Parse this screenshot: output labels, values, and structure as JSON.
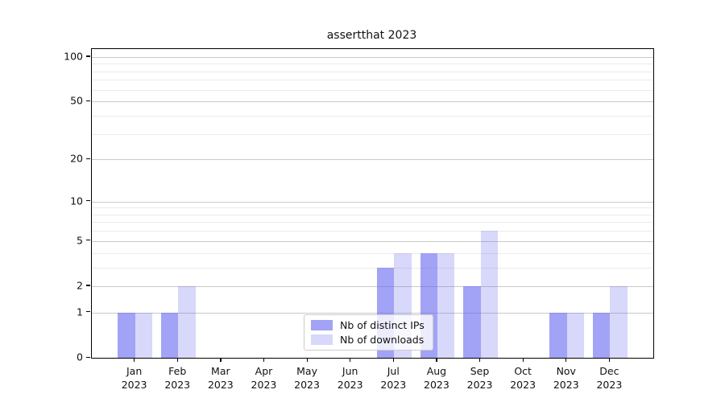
{
  "title": "assertthat 2023",
  "chart_data": {
    "type": "bar",
    "title": "assertthat 2023",
    "xlabel": "",
    "ylabel": "",
    "y_scale": "log1p",
    "ylim": [
      0,
      113
    ],
    "grid": true,
    "legend_position": "lower center",
    "year": "2023",
    "categories": [
      "Jan",
      "Feb",
      "Mar",
      "Apr",
      "May",
      "Jun",
      "Jul",
      "Aug",
      "Sep",
      "Oct",
      "Nov",
      "Dec"
    ],
    "series": [
      {
        "name": "Nb of distinct IPs",
        "color": "rgba(100,100,240,0.6)",
        "values": [
          1,
          1,
          0,
          0,
          0,
          0,
          3,
          4,
          2,
          0,
          1,
          1
        ]
      },
      {
        "name": "Nb of downloads",
        "color": "rgba(100,100,240,0.25)",
        "values": [
          1,
          2,
          0,
          0,
          0,
          0,
          4,
          4,
          6,
          0,
          1,
          2
        ]
      }
    ],
    "yticks": [
      0,
      1,
      2,
      5,
      10,
      20,
      50,
      100
    ],
    "minor_gridlines": [
      3,
      4,
      6,
      7,
      8,
      9,
      30,
      40,
      60,
      70,
      80,
      90
    ],
    "colors": {
      "major_grid": "#c9c9c9",
      "minor_grid": "#ebebeb",
      "frame": "#000000",
      "text": "#111111"
    }
  }
}
